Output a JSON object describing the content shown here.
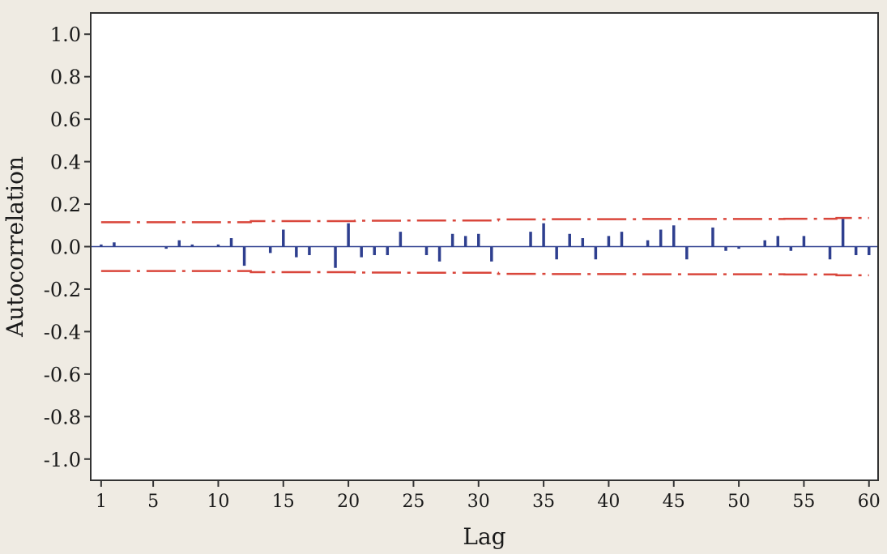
{
  "chart_data": {
    "type": "bar",
    "title": "",
    "xlabel": "Lag",
    "ylabel": "Autocorrelation",
    "ylim": [
      -1.1,
      1.1
    ],
    "xlim": [
      0.2,
      60.7
    ],
    "y_ticks": [
      "1.0",
      "0.8",
      "0.6",
      "0.4",
      "0.2",
      "0.0",
      "-0.2",
      "-0.4",
      "-0.6",
      "-0.8",
      "-1.0"
    ],
    "x_ticks": [
      1,
      5,
      10,
      15,
      20,
      25,
      30,
      35,
      40,
      45,
      50,
      55,
      60
    ],
    "grid": false,
    "legend": "none",
    "lags": [
      1,
      2,
      3,
      4,
      5,
      6,
      7,
      8,
      9,
      10,
      11,
      12,
      13,
      14,
      15,
      16,
      17,
      18,
      19,
      20,
      21,
      22,
      23,
      24,
      25,
      26,
      27,
      28,
      29,
      30,
      31,
      32,
      33,
      34,
      35,
      36,
      37,
      38,
      39,
      40,
      41,
      42,
      43,
      44,
      45,
      46,
      47,
      48,
      49,
      50,
      51,
      52,
      53,
      54,
      55,
      56,
      57,
      58,
      59,
      60
    ],
    "values": [
      0.01,
      0.02,
      0.0,
      0.0,
      0.0,
      -0.01,
      0.03,
      0.01,
      0.0,
      0.01,
      0.04,
      -0.09,
      0.0,
      -0.03,
      0.08,
      -0.05,
      -0.04,
      0.0,
      -0.1,
      0.11,
      -0.05,
      -0.04,
      -0.04,
      0.07,
      0.0,
      -0.04,
      -0.07,
      0.06,
      0.05,
      0.06,
      -0.07,
      0.0,
      0.0,
      0.07,
      0.11,
      -0.06,
      0.06,
      0.04,
      -0.06,
      0.05,
      0.07,
      0.0,
      0.03,
      0.08,
      0.1,
      -0.06,
      0.0,
      0.09,
      -0.02,
      -0.01,
      0.0,
      0.03,
      0.05,
      -0.02,
      0.05,
      0.0,
      -0.06,
      0.13,
      -0.04,
      -0.04
    ],
    "confidence_upper": [
      0.115,
      0.115,
      0.115,
      0.115,
      0.115,
      0.115,
      0.115,
      0.115,
      0.115,
      0.115,
      0.115,
      0.115,
      0.12,
      0.12,
      0.12,
      0.12,
      0.12,
      0.12,
      0.12,
      0.12,
      0.122,
      0.122,
      0.122,
      0.122,
      0.123,
      0.123,
      0.123,
      0.123,
      0.123,
      0.123,
      0.123,
      0.128,
      0.128,
      0.128,
      0.128,
      0.129,
      0.129,
      0.129,
      0.129,
      0.129,
      0.129,
      0.129,
      0.13,
      0.13,
      0.13,
      0.13,
      0.13,
      0.13,
      0.13,
      0.13,
      0.13,
      0.13,
      0.13,
      0.131,
      0.131,
      0.131,
      0.131,
      0.135,
      0.135,
      0.135
    ],
    "confidence_lower": [
      -0.115,
      -0.115,
      -0.115,
      -0.115,
      -0.115,
      -0.115,
      -0.115,
      -0.115,
      -0.115,
      -0.115,
      -0.115,
      -0.115,
      -0.12,
      -0.12,
      -0.12,
      -0.12,
      -0.12,
      -0.12,
      -0.12,
      -0.12,
      -0.122,
      -0.122,
      -0.122,
      -0.122,
      -0.123,
      -0.123,
      -0.123,
      -0.123,
      -0.123,
      -0.123,
      -0.123,
      -0.128,
      -0.128,
      -0.128,
      -0.128,
      -0.129,
      -0.129,
      -0.129,
      -0.129,
      -0.129,
      -0.129,
      -0.129,
      -0.13,
      -0.13,
      -0.13,
      -0.13,
      -0.13,
      -0.13,
      -0.13,
      -0.13,
      -0.13,
      -0.13,
      -0.13,
      -0.131,
      -0.131,
      -0.131,
      -0.131,
      -0.135,
      -0.135,
      -0.135
    ],
    "colors": {
      "bars": "#2e3f8f",
      "confidence": "#d9463b",
      "zero_line": "#2e3f8f",
      "frame": "#333333",
      "plot_bg": "#ffffff",
      "page_bg": "#efebe3"
    }
  }
}
